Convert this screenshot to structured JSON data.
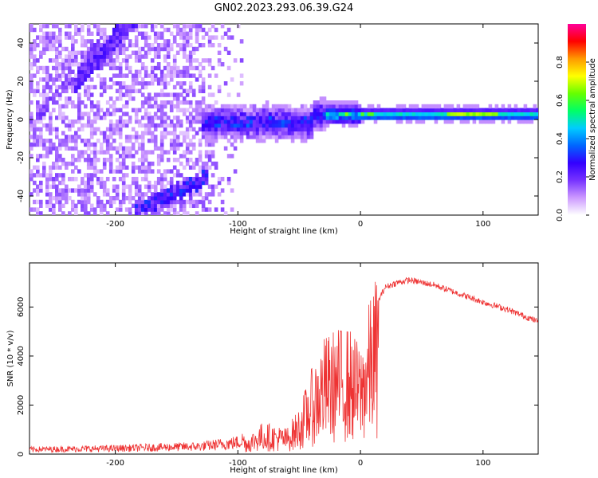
{
  "title": "GN02.2023.293.06.39.G24",
  "colors": {
    "snr_line": "#ee3333",
    "colormap": [
      "#ffffff",
      "#cc99ff",
      "#7733ff",
      "#3300ff",
      "#0066ff",
      "#00ccff",
      "#00ff66",
      "#66ff00",
      "#ffff00",
      "#ff9900",
      "#ff0000",
      "#ff0099"
    ]
  },
  "chart_data": [
    {
      "type": "heatmap",
      "title": "",
      "xlabel": "Height of straight line (km)",
      "ylabel": "Frequency (Hz)",
      "xlim": [
        -270,
        145
      ],
      "ylim": [
        -50,
        50
      ],
      "xticks": [
        -200,
        -100,
        0,
        100
      ],
      "yticks": [
        -40,
        -20,
        0,
        20,
        40
      ],
      "colorbar": {
        "label": "Normalized spectral amplitude",
        "range": [
          0,
          1
        ],
        "ticks": [
          0.0,
          0.2,
          0.4,
          0.6,
          0.8
        ]
      },
      "features": [
        {
          "name": "direct-signal",
          "x": [
            -130,
            145
          ],
          "frequency_hz": 0
        },
        {
          "name": "upper-diagonal-band",
          "x": [
            -230,
            -190
          ],
          "frequency_hz": [
            20,
            50
          ]
        },
        {
          "name": "lower-diagonal-band",
          "x": [
            -185,
            -125
          ],
          "frequency_hz": [
            -48,
            -33
          ]
        }
      ]
    },
    {
      "type": "line",
      "title": "",
      "xlabel": "Height of straight line (km)",
      "ylabel": "SNR (10 * v/v)",
      "xlim": [
        -270,
        145
      ],
      "ylim": [
        0,
        7800
      ],
      "xticks": [
        -200,
        -100,
        0,
        100
      ],
      "yticks": [
        0,
        2000,
        4000,
        6000
      ],
      "envelope_x": [
        -270,
        -200,
        -130,
        -100,
        -90,
        -80,
        -70,
        -60,
        -50,
        -40,
        -30,
        -20,
        -10,
        0,
        10,
        20,
        30,
        40,
        60,
        80,
        100,
        120,
        145
      ],
      "envelope_y": [
        180,
        220,
        300,
        450,
        700,
        1100,
        1000,
        900,
        1600,
        2900,
        4000,
        4300,
        4400,
        3700,
        5800,
        6800,
        7000,
        7100,
        6900,
        6550,
        6200,
        5900,
        5400
      ]
    }
  ]
}
